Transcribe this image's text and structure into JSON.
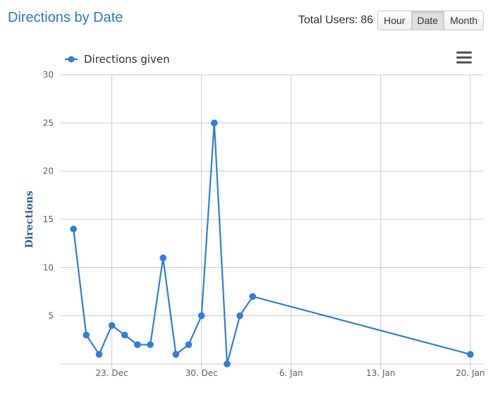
{
  "header": {
    "title": "Directions by Date",
    "total_users_label": "Total Users:",
    "total_users_value": "86",
    "buttons": [
      "Hour",
      "Date",
      "Month"
    ],
    "active_button": "Date"
  },
  "colors": {
    "series": "#2f7ed8",
    "title": "#2a7ab7",
    "grid": "#cccccc"
  },
  "icons": {
    "menu": "hamburger-menu-icon"
  },
  "chart_data": {
    "type": "line",
    "ylabel": "Directions",
    "xlabel": "",
    "ylim": [
      0,
      30
    ],
    "yticks": [
      5,
      10,
      15,
      20,
      25,
      30
    ],
    "xlim": [
      "2018-12-19",
      "2019-01-21"
    ],
    "xticks": [
      {
        "date": "2018-12-23",
        "label": "23. Dec"
      },
      {
        "date": "2018-12-30",
        "label": "30. Dec"
      },
      {
        "date": "2019-01-06",
        "label": "6. Jan"
      },
      {
        "date": "2019-01-13",
        "label": "13. Jan"
      },
      {
        "date": "2019-01-20",
        "label": "20. Jan"
      }
    ],
    "grid": true,
    "legend": "top-left",
    "series": [
      {
        "name": "Directions given",
        "color": "#2f7ed8",
        "points": [
          {
            "x": "2018-12-20",
            "y": 14
          },
          {
            "x": "2018-12-21",
            "y": 3
          },
          {
            "x": "2018-12-22",
            "y": 1
          },
          {
            "x": "2018-12-23",
            "y": 4
          },
          {
            "x": "2018-12-24",
            "y": 3
          },
          {
            "x": "2018-12-25",
            "y": 2
          },
          {
            "x": "2018-12-26",
            "y": 2
          },
          {
            "x": "2018-12-27",
            "y": 11
          },
          {
            "x": "2018-12-28",
            "y": 1
          },
          {
            "x": "2018-12-29",
            "y": 2
          },
          {
            "x": "2018-12-30",
            "y": 5
          },
          {
            "x": "2018-12-31",
            "y": 25
          },
          {
            "x": "2019-01-01",
            "y": 0
          },
          {
            "x": "2019-01-02",
            "y": 5
          },
          {
            "x": "2019-01-03",
            "y": 7
          },
          {
            "x": "2019-01-20",
            "y": 1
          }
        ]
      }
    ]
  }
}
